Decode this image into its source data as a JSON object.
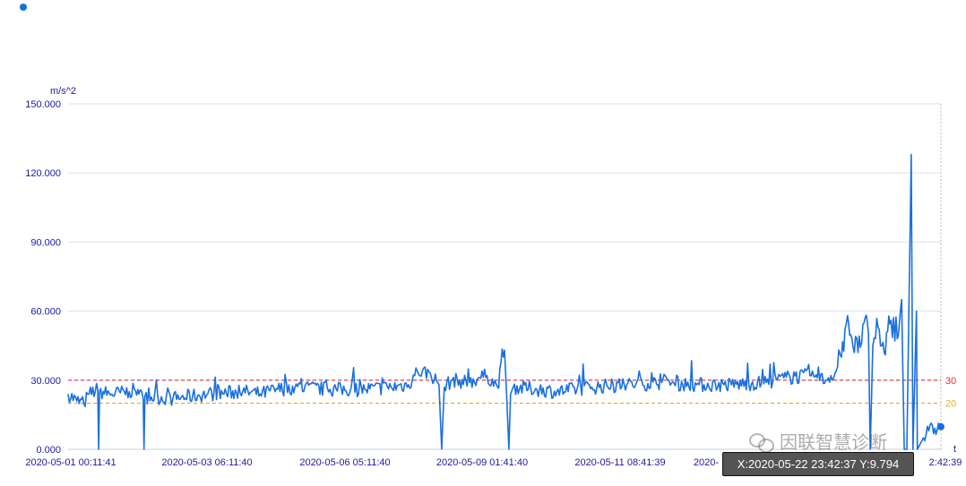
{
  "legend": {
    "label": "",
    "color": "#1a6fe0"
  },
  "chart_data": {
    "type": "line",
    "ylabel": "m/s^2",
    "xlabel": "t",
    "ylim": [
      0,
      150
    ],
    "yticks": [
      "0.000",
      "30.000",
      "60.000",
      "90.000",
      "120.000",
      "150.000"
    ],
    "xticks": [
      "2020-05-01 00:11:41",
      "2020-05-03 06:11:40",
      "2020-05-06 05:11:40",
      "2020-05-09 01:41:40",
      "2020-05-11 08:41:39",
      "2020-",
      "2:42:39"
    ],
    "grid": "horizontal",
    "thresholds": [
      {
        "value": 30,
        "label": "30",
        "color": "#e0303a",
        "style": "dashed"
      },
      {
        "value": 20,
        "label": "20",
        "color": "#e8b020",
        "style": "dashed"
      }
    ],
    "series": [
      {
        "color": "#1a6fe0",
        "marker_last": {
          "y": 9.794
        }
      }
    ],
    "knots": [
      [
        0.0,
        24
      ],
      [
        0.01,
        21
      ],
      [
        0.018,
        20
      ],
      [
        0.024,
        24
      ],
      [
        0.034,
        26
      ],
      [
        0.035,
        0
      ],
      [
        0.036,
        25
      ],
      [
        0.05,
        24
      ],
      [
        0.07,
        25
      ],
      [
        0.08,
        26
      ],
      [
        0.081,
        24
      ],
      [
        0.086,
        22
      ],
      [
        0.087,
        0
      ],
      [
        0.088,
        23
      ],
      [
        0.12,
        22
      ],
      [
        0.16,
        24
      ],
      [
        0.2,
        25
      ],
      [
        0.22,
        24
      ],
      [
        0.24,
        26
      ],
      [
        0.26,
        27
      ],
      [
        0.3,
        26
      ],
      [
        0.34,
        26
      ],
      [
        0.37,
        27
      ],
      [
        0.39,
        28
      ],
      [
        0.4,
        34
      ],
      [
        0.415,
        33
      ],
      [
        0.425,
        28
      ],
      [
        0.428,
        0
      ],
      [
        0.431,
        27
      ],
      [
        0.44,
        30
      ],
      [
        0.46,
        29
      ],
      [
        0.47,
        31
      ],
      [
        0.48,
        32
      ],
      [
        0.492,
        27
      ],
      [
        0.5,
        43
      ],
      [
        0.502,
        28
      ],
      [
        0.505,
        0
      ],
      [
        0.507,
        24
      ],
      [
        0.51,
        27
      ],
      [
        0.54,
        26
      ],
      [
        0.56,
        25
      ],
      [
        0.6,
        27
      ],
      [
        0.64,
        28
      ],
      [
        0.68,
        29
      ],
      [
        0.72,
        28
      ],
      [
        0.76,
        28
      ],
      [
        0.8,
        29
      ],
      [
        0.82,
        31
      ],
      [
        0.85,
        32
      ],
      [
        0.868,
        30
      ],
      [
        0.88,
        34
      ],
      [
        0.886,
        40
      ],
      [
        0.89,
        52
      ],
      [
        0.893,
        58
      ],
      [
        0.898,
        48
      ],
      [
        0.905,
        42
      ],
      [
        0.912,
        55
      ],
      [
        0.917,
        50
      ],
      [
        0.919,
        0
      ],
      [
        0.922,
        45
      ],
      [
        0.928,
        53
      ],
      [
        0.935,
        42
      ],
      [
        0.943,
        56
      ],
      [
        0.95,
        48
      ],
      [
        0.955,
        65
      ],
      [
        0.958,
        0
      ],
      [
        0.961,
        0
      ],
      [
        0.966,
        128
      ],
      [
        0.968,
        0
      ],
      [
        0.972,
        60
      ],
      [
        0.973,
        0
      ],
      [
        0.98,
        5
      ],
      [
        0.986,
        8
      ],
      [
        1.0,
        9.794
      ]
    ]
  },
  "tooltip": {
    "text": "X:2020-05-22 23:42:37 Y:9.794"
  },
  "watermark": {
    "text": "因联智慧诊断"
  }
}
